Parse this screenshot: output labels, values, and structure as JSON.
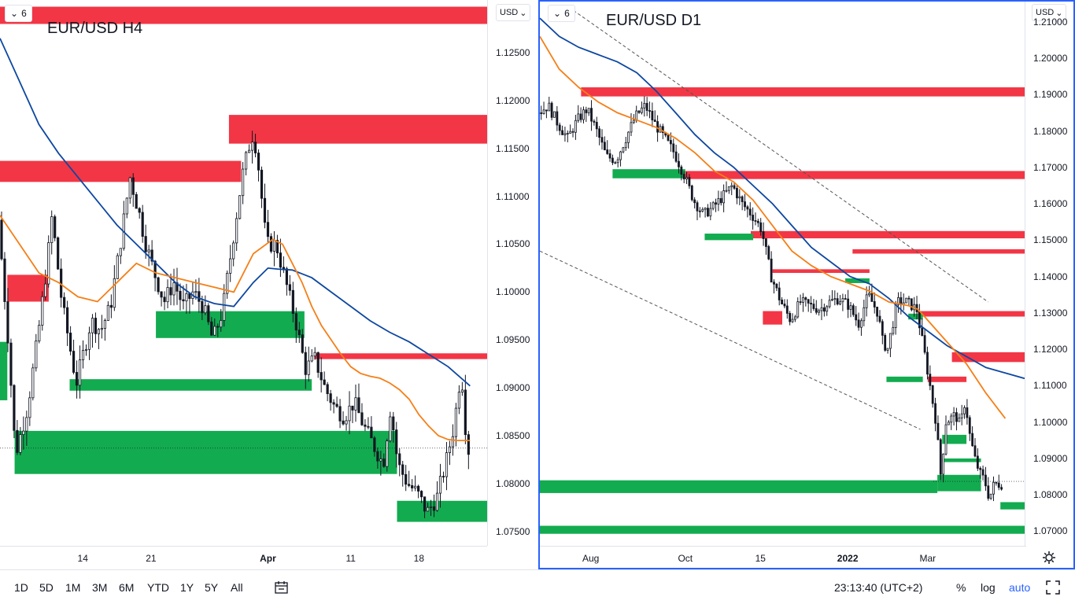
{
  "colors": {
    "up": "#131722",
    "down": "#131722",
    "resistance": "#f23645",
    "support": "#13ab50",
    "ma_fast": "#f57f17",
    "ma_slow": "#0d47a1",
    "accent": "#2962ff",
    "trend": "#555555"
  },
  "toolbar": {
    "ranges": [
      "1D",
      "5D",
      "1M",
      "3M",
      "6M",
      "YTD",
      "1Y",
      "5Y",
      "All"
    ],
    "compare_icon": "calendar-range-icon",
    "clock": "23:13:40 (UTC+2)",
    "percent_label": "%",
    "log_label": "log",
    "auto_label": "auto",
    "fullscreen_icon": "fullscreen-icon"
  },
  "charts": [
    {
      "id": "left",
      "title": "EUR/USD H4",
      "collapse_label": "6",
      "unit_label": "USD",
      "price_ticks": [
        "1.12500",
        "1.12000",
        "1.11500",
        "1.11000",
        "1.10500",
        "1.10000",
        "1.09500",
        "1.09000",
        "1.08500",
        "1.08000",
        "1.07500"
      ],
      "time_ticks": [
        {
          "label": "14",
          "bold": false
        },
        {
          "label": "21",
          "bold": false
        },
        {
          "label": "Apr",
          "bold": true
        },
        {
          "label": "11",
          "bold": false
        },
        {
          "label": "18",
          "bold": false
        }
      ]
    },
    {
      "id": "right",
      "title": "EUR/USD D1",
      "collapse_label": "6",
      "unit_label": "USD",
      "price_ticks": [
        "1.21000",
        "1.20000",
        "1.19000",
        "1.18000",
        "1.17000",
        "1.16000",
        "1.15000",
        "1.14000",
        "1.13000",
        "1.12000",
        "1.11000",
        "1.10000",
        "1.09000",
        "1.08000",
        "1.07000"
      ],
      "time_ticks": [
        {
          "label": "Aug",
          "bold": false
        },
        {
          "label": "Oct",
          "bold": false
        },
        {
          "label": "15",
          "bold": false
        },
        {
          "label": "2022",
          "bold": true
        },
        {
          "label": "Mar",
          "bold": false
        }
      ]
    }
  ],
  "chart_data": [
    {
      "type": "candlestick",
      "title": "EUR/USD H4",
      "ylim": [
        1.0735,
        1.1305
      ],
      "x_range": [
        0,
        100
      ],
      "time_tick_positions": [
        17,
        31,
        55,
        72,
        86
      ],
      "zones": [
        {
          "kind": "resistance",
          "x0": 0,
          "x1": 100,
          "y0": 1.128,
          "y1": 1.1298
        },
        {
          "kind": "resistance",
          "x0": 47,
          "x1": 100,
          "y0": 1.1155,
          "y1": 1.1185
        },
        {
          "kind": "resistance",
          "x0": 0,
          "x1": 49.5,
          "y0": 1.1115,
          "y1": 1.1137
        },
        {
          "kind": "resistance",
          "x0": 1.5,
          "x1": 10,
          "y0": 1.099,
          "y1": 1.1018
        },
        {
          "kind": "resistance",
          "x0": 64.5,
          "x1": 100,
          "y0": 1.093,
          "y1": 1.0936
        },
        {
          "kind": "support",
          "x0": 32,
          "x1": 62.5,
          "y0": 1.0952,
          "y1": 1.098
        },
        {
          "kind": "support",
          "x0": 14.3,
          "x1": 64,
          "y0": 1.0897,
          "y1": 1.0909
        },
        {
          "kind": "support",
          "x0": 3,
          "x1": 81.5,
          "y0": 1.081,
          "y1": 1.0855
        },
        {
          "kind": "support",
          "x0": 81.5,
          "x1": 100,
          "y0": 1.076,
          "y1": 1.0782
        },
        {
          "kind": "support",
          "x0": 0,
          "x1": 1.5,
          "y0": 1.0887,
          "y1": 1.0948
        }
      ],
      "ohlc_keypoints": [
        [
          0,
          1.1075
        ],
        [
          2,
          1.095
        ],
        [
          3.5,
          1.083
        ],
        [
          6,
          1.088
        ],
        [
          8,
          1.095
        ],
        [
          10,
          1.103
        ],
        [
          11,
          1.108
        ],
        [
          13,
          1.099
        ],
        [
          16,
          1.0905
        ],
        [
          19,
          1.097
        ],
        [
          21,
          1.096
        ],
        [
          23,
          1.0985
        ],
        [
          25,
          1.105
        ],
        [
          27,
          1.112
        ],
        [
          29,
          1.108
        ],
        [
          30,
          1.1055
        ],
        [
          32,
          1.102
        ],
        [
          34,
          1.099
        ],
        [
          36,
          1.101
        ],
        [
          38,
          1.0985
        ],
        [
          40,
          1.1
        ],
        [
          42,
          1.0985
        ],
        [
          44,
          1.095
        ],
        [
          46,
          1.098
        ],
        [
          48,
          1.105
        ],
        [
          50,
          1.112
        ],
        [
          52,
          1.1165
        ],
        [
          53,
          1.115
        ],
        [
          55,
          1.105
        ],
        [
          57,
          1.105
        ],
        [
          59,
          1.101
        ],
        [
          61,
          1.097
        ],
        [
          63,
          1.092
        ],
        [
          65,
          1.093
        ],
        [
          67,
          1.09
        ],
        [
          69,
          1.088
        ],
        [
          71,
          1.087
        ],
        [
          73,
          1.0885
        ],
        [
          75,
          1.086
        ],
        [
          77,
          1.084
        ],
        [
          79,
          1.082
        ],
        [
          80.5,
          1.088
        ],
        [
          82,
          1.082
        ],
        [
          84,
          1.08
        ],
        [
          86,
          1.079
        ],
        [
          88,
          1.077
        ],
        [
          90,
          1.0785
        ],
        [
          92,
          1.0825
        ],
        [
          93.5,
          1.086
        ],
        [
          95,
          1.092
        ],
        [
          96,
          1.085
        ],
        [
          96.5,
          1.0835
        ]
      ],
      "ma_fast": [
        [
          0,
          1.108
        ],
        [
          4,
          1.105
        ],
        [
          8,
          1.102
        ],
        [
          12,
          1.101
        ],
        [
          16,
          1.0995
        ],
        [
          20,
          1.099
        ],
        [
          24,
          1.101
        ],
        [
          28,
          1.103
        ],
        [
          32,
          1.102
        ],
        [
          36,
          1.1015
        ],
        [
          40,
          1.101
        ],
        [
          44,
          1.1005
        ],
        [
          48,
          1.1
        ],
        [
          52,
          1.104
        ],
        [
          56,
          1.1055
        ],
        [
          58,
          1.105
        ],
        [
          60,
          1.103
        ],
        [
          62,
          1.101
        ],
        [
          64,
          1.0985
        ],
        [
          66,
          1.0965
        ],
        [
          68,
          1.095
        ],
        [
          70,
          1.0935
        ],
        [
          72,
          1.0922
        ],
        [
          74,
          1.0915
        ],
        [
          76,
          1.0912
        ],
        [
          78,
          1.091
        ],
        [
          80,
          1.0905
        ],
        [
          82,
          1.0898
        ],
        [
          84,
          1.0888
        ],
        [
          86,
          1.0872
        ],
        [
          88,
          1.086
        ],
        [
          90,
          1.085
        ],
        [
          92,
          1.0846
        ],
        [
          94,
          1.0845
        ],
        [
          96.5,
          1.0845
        ]
      ],
      "ma_slow": [
        [
          0,
          1.1265
        ],
        [
          4,
          1.122
        ],
        [
          8,
          1.1175
        ],
        [
          12,
          1.1145
        ],
        [
          16,
          1.112
        ],
        [
          20,
          1.1095
        ],
        [
          24,
          1.107
        ],
        [
          28,
          1.105
        ],
        [
          32,
          1.103
        ],
        [
          36,
          1.101
        ],
        [
          40,
          1.0995
        ],
        [
          44,
          1.0988
        ],
        [
          48,
          1.0985
        ],
        [
          52,
          1.101
        ],
        [
          55,
          1.1025
        ],
        [
          57,
          1.1024
        ],
        [
          60,
          1.1023
        ],
        [
          64,
          1.1015
        ],
        [
          68,
          1.1
        ],
        [
          72,
          1.0985
        ],
        [
          76,
          1.097
        ],
        [
          80,
          1.0958
        ],
        [
          84,
          1.0948
        ],
        [
          88,
          1.0935
        ],
        [
          92,
          1.0922
        ],
        [
          96.5,
          1.0902
        ]
      ]
    },
    {
      "type": "candlestick",
      "title": "EUR/USD D1",
      "ylim": [
        1.066,
        1.216
      ],
      "x_range": [
        0,
        100
      ],
      "time_tick_positions": [
        10.5,
        30,
        45.5,
        63.5,
        80
      ]
    }
  ],
  "right_overlay": {
    "zones": [
      {
        "kind": "resistance",
        "x0": 8.5,
        "x1": 100,
        "y0": 1.1895,
        "y1": 1.192
      },
      {
        "kind": "resistance",
        "x0": 30,
        "x1": 100,
        "y0": 1.1668,
        "y1": 1.169
      },
      {
        "kind": "resistance",
        "x0": 43.5,
        "x1": 100,
        "y0": 1.1505,
        "y1": 1.1525
      },
      {
        "kind": "resistance",
        "x0": 64.5,
        "x1": 100,
        "y0": 1.1463,
        "y1": 1.1475
      },
      {
        "kind": "resistance",
        "x0": 48,
        "x1": 68,
        "y0": 1.141,
        "y1": 1.142
      },
      {
        "kind": "resistance",
        "x0": 46,
        "x1": 50,
        "y0": 1.1268,
        "y1": 1.1305
      },
      {
        "kind": "resistance",
        "x0": 78,
        "x1": 100,
        "y0": 1.129,
        "y1": 1.1305
      },
      {
        "kind": "resistance",
        "x0": 85,
        "x1": 100,
        "y0": 1.1165,
        "y1": 1.1192
      },
      {
        "kind": "resistance",
        "x0": 80,
        "x1": 88,
        "y0": 1.111,
        "y1": 1.1125
      },
      {
        "kind": "support",
        "x0": 15,
        "x1": 30,
        "y0": 1.167,
        "y1": 1.1695
      },
      {
        "kind": "support",
        "x0": 34,
        "x1": 44,
        "y0": 1.15,
        "y1": 1.1518
      },
      {
        "kind": "support",
        "x0": 63,
        "x1": 68,
        "y0": 1.1382,
        "y1": 1.1395
      },
      {
        "kind": "support",
        "x0": 76,
        "x1": 79,
        "y0": 1.1282,
        "y1": 1.1298
      },
      {
        "kind": "support",
        "x0": 71.5,
        "x1": 79,
        "y0": 1.111,
        "y1": 1.1125
      },
      {
        "kind": "support",
        "x0": 83,
        "x1": 88,
        "y0": 1.094,
        "y1": 1.0965
      },
      {
        "kind": "support",
        "x0": 83,
        "x1": 91,
        "y0": 1.089,
        "y1": 1.09
      },
      {
        "kind": "support",
        "x0": 0,
        "x1": 82,
        "y0": 1.0805,
        "y1": 1.084
      },
      {
        "kind": "support",
        "x0": 82,
        "x1": 91,
        "y0": 1.081,
        "y1": 1.0855
      },
      {
        "kind": "support",
        "x0": 95,
        "x1": 100,
        "y0": 1.076,
        "y1": 1.078
      },
      {
        "kind": "support",
        "x0": 0,
        "x1": 100,
        "y0": 1.0693,
        "y1": 1.0715
      }
    ],
    "trendlines": [
      [
        [
          6,
          1.214
        ],
        [
          92.5,
          1.133
        ]
      ],
      [
        [
          0,
          1.147
        ],
        [
          78.5,
          1.098
        ]
      ]
    ],
    "ohlc_keypoints": [
      [
        0,
        1.185
      ],
      [
        2,
        1.187
      ],
      [
        4,
        1.182
      ],
      [
        6,
        1.178
      ],
      [
        8,
        1.183
      ],
      [
        10,
        1.186
      ],
      [
        12,
        1.18
      ],
      [
        14,
        1.173
      ],
      [
        16,
        1.172
      ],
      [
        18,
        1.178
      ],
      [
        20,
        1.184
      ],
      [
        22,
        1.187
      ],
      [
        24,
        1.182
      ],
      [
        26,
        1.178
      ],
      [
        28,
        1.174
      ],
      [
        30,
        1.168
      ],
      [
        32,
        1.161
      ],
      [
        34,
        1.157
      ],
      [
        36,
        1.159
      ],
      [
        38,
        1.162
      ],
      [
        40,
        1.165
      ],
      [
        42,
        1.16
      ],
      [
        44,
        1.157
      ],
      [
        46,
        1.153
      ],
      [
        48,
        1.14
      ],
      [
        50,
        1.133
      ],
      [
        52,
        1.128
      ],
      [
        54,
        1.133
      ],
      [
        56,
        1.132
      ],
      [
        58,
        1.131
      ],
      [
        60,
        1.133
      ],
      [
        62,
        1.134
      ],
      [
        64,
        1.132
      ],
      [
        66,
        1.127
      ],
      [
        68,
        1.135
      ],
      [
        70,
        1.13
      ],
      [
        71,
        1.122
      ],
      [
        72,
        1.12
      ],
      [
        74,
        1.133
      ],
      [
        76,
        1.133
      ],
      [
        78,
        1.131
      ],
      [
        80,
        1.116
      ],
      [
        82,
        1.1
      ],
      [
        83,
        1.085
      ],
      [
        84,
        1.1
      ],
      [
        86,
        1.102
      ],
      [
        87,
        1.099
      ],
      [
        88,
        1.106
      ],
      [
        89,
        1.096
      ],
      [
        90,
        1.09
      ],
      [
        91,
        1.086
      ],
      [
        92,
        1.084
      ],
      [
        93,
        1.079
      ],
      [
        94,
        1.083
      ],
      [
        95.5,
        1.083
      ]
    ],
    "ma_fast": [
      [
        0,
        1.206
      ],
      [
        4,
        1.197
      ],
      [
        8,
        1.192
      ],
      [
        12,
        1.188
      ],
      [
        16,
        1.185
      ],
      [
        20,
        1.183
      ],
      [
        24,
        1.181
      ],
      [
        28,
        1.178
      ],
      [
        32,
        1.174
      ],
      [
        36,
        1.169
      ],
      [
        40,
        1.166
      ],
      [
        44,
        1.161
      ],
      [
        48,
        1.154
      ],
      [
        52,
        1.147
      ],
      [
        56,
        1.143
      ],
      [
        60,
        1.14
      ],
      [
        64,
        1.138
      ],
      [
        68,
        1.136
      ],
      [
        72,
        1.133
      ],
      [
        76,
        1.132
      ],
      [
        78,
        1.131
      ],
      [
        80,
        1.128
      ],
      [
        84,
        1.122
      ],
      [
        88,
        1.116
      ],
      [
        92,
        1.108
      ],
      [
        96,
        1.101
      ]
    ],
    "ma_slow": [
      [
        0,
        1.211
      ],
      [
        4,
        1.206
      ],
      [
        8,
        1.203
      ],
      [
        12,
        1.201
      ],
      [
        16,
        1.199
      ],
      [
        20,
        1.196
      ],
      [
        24,
        1.191
      ],
      [
        28,
        1.185
      ],
      [
        32,
        1.179
      ],
      [
        36,
        1.174
      ],
      [
        40,
        1.17
      ],
      [
        44,
        1.165
      ],
      [
        48,
        1.16
      ],
      [
        52,
        1.154
      ],
      [
        56,
        1.148
      ],
      [
        60,
        1.144
      ],
      [
        64,
        1.14
      ],
      [
        68,
        1.138
      ],
      [
        72,
        1.134
      ],
      [
        76,
        1.129
      ],
      [
        80,
        1.125
      ],
      [
        84,
        1.121
      ],
      [
        88,
        1.118
      ],
      [
        92,
        1.115
      ],
      [
        96,
        1.1135
      ],
      [
        100,
        1.112
      ]
    ]
  }
}
